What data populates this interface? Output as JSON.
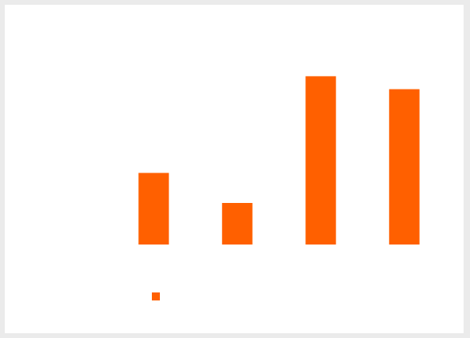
{
  "chart_data": {
    "type": "bar",
    "title": "",
    "xlabel": "",
    "ylabel": "",
    "categories": [
      "",
      "",
      "",
      ""
    ],
    "series": [
      {
        "name": "",
        "color": "#ff6000",
        "values": [
          1.0,
          0.58,
          2.35,
          2.17
        ]
      }
    ],
    "ylim": [
      0,
      2.5
    ],
    "grid": false,
    "legend": "bottom-left"
  }
}
